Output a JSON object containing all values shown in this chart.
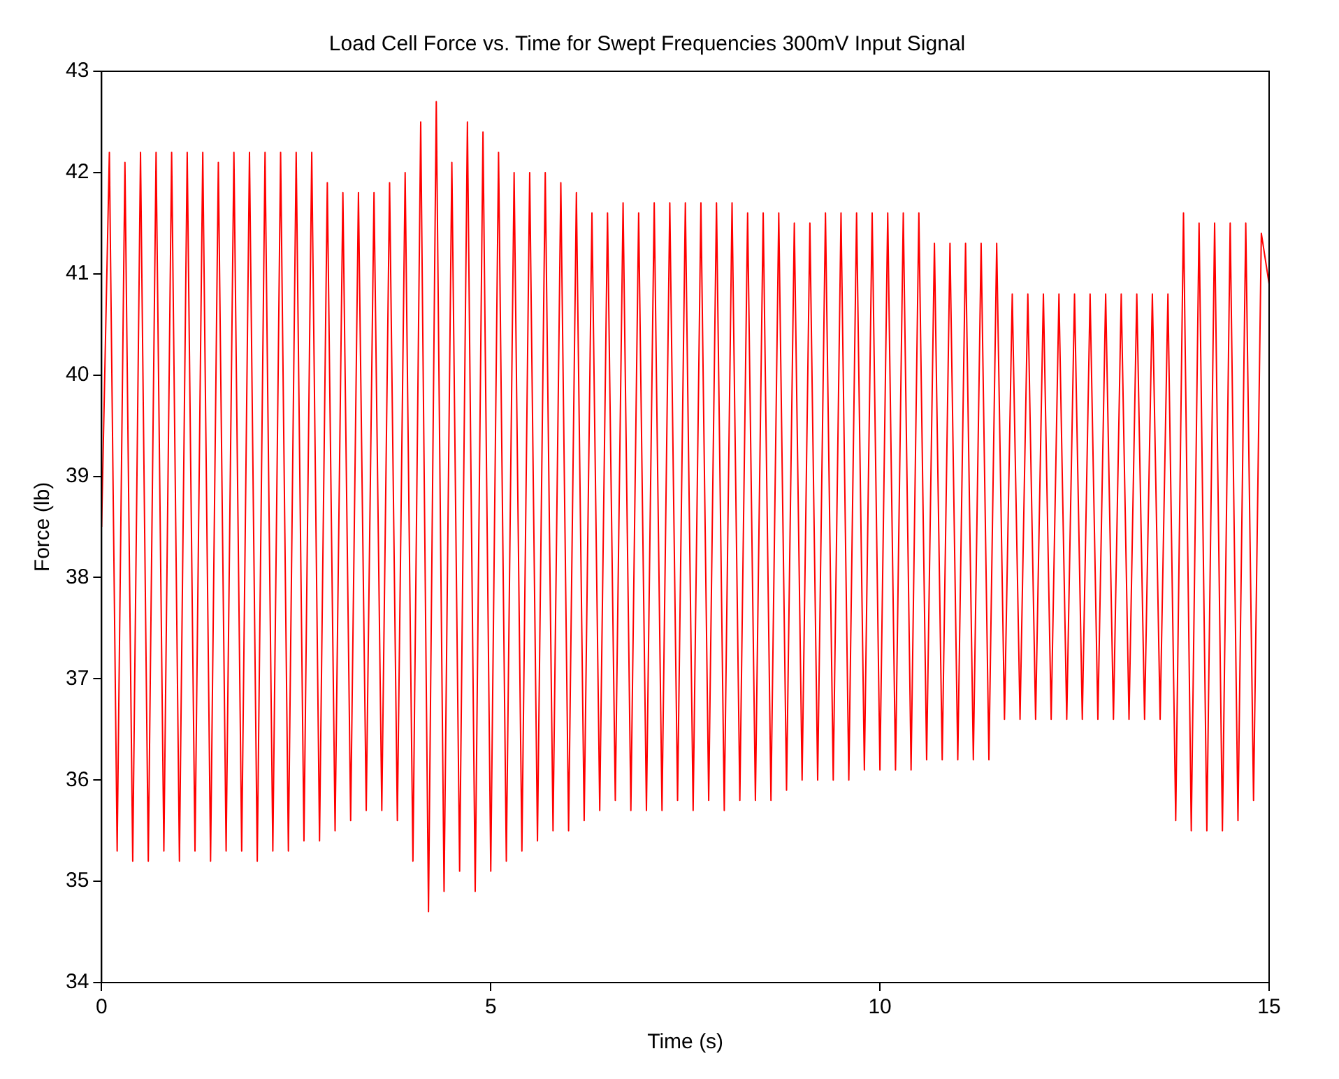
{
  "chart_data": {
    "type": "line",
    "title": "Load Cell Force vs. Time for Swept Frequencies 300mV Input Signal",
    "xlabel": "Time (s)",
    "ylabel": "Force (lb)",
    "xlim": [
      0,
      15
    ],
    "xticks": [
      0,
      5,
      10,
      15
    ],
    "ylim": [
      34,
      43
    ],
    "yticks": [
      34,
      35,
      36,
      37,
      38,
      39,
      40,
      41,
      42,
      43
    ],
    "grid": false,
    "legend": false,
    "marker": "none",
    "line_style": "solid",
    "series": [
      {
        "color": "#ff0000",
        "x": [
          0,
          0.1,
          0.2,
          0.3,
          0.4,
          0.5,
          0.6,
          0.7,
          0.8,
          0.9,
          1.0,
          1.1,
          1.2,
          1.3,
          1.4,
          1.5,
          1.6,
          1.7,
          1.8,
          1.9,
          2.0,
          2.1,
          2.2,
          2.3,
          2.4,
          2.5,
          2.6,
          2.7,
          2.8,
          2.9,
          3.0,
          3.1,
          3.2,
          3.3,
          3.4,
          3.5,
          3.6,
          3.7,
          3.8,
          3.9,
          4.0,
          4.1,
          4.2,
          4.3,
          4.4,
          4.5,
          4.6,
          4.7,
          4.8,
          4.9,
          5.0,
          5.1,
          5.2,
          5.3,
          5.4,
          5.5,
          5.6,
          5.7,
          5.8,
          5.9,
          6.0,
          6.1,
          6.2,
          6.3,
          6.4,
          6.5,
          6.6,
          6.7,
          6.8,
          6.9,
          7.0,
          7.1,
          7.2,
          7.3,
          7.4,
          7.5,
          7.6,
          7.7,
          7.8,
          7.9,
          8.0,
          8.1,
          8.2,
          8.3,
          8.4,
          8.5,
          8.6,
          8.7,
          8.8,
          8.9,
          9.0,
          9.1,
          9.2,
          9.3,
          9.4,
          9.5,
          9.6,
          9.7,
          9.8,
          9.9,
          10.0,
          10.1,
          10.2,
          10.3,
          10.4,
          10.5,
          10.6,
          10.7,
          10.8,
          10.9,
          11.0,
          11.1,
          11.2,
          11.3,
          11.4,
          11.5,
          11.6,
          11.7,
          11.8,
          11.9,
          12.0,
          12.1,
          12.2,
          12.3,
          12.4,
          12.5,
          12.6,
          12.7,
          12.8,
          12.9,
          13.0,
          13.1,
          13.2,
          13.3,
          13.4,
          13.5,
          13.6,
          13.7,
          13.8,
          13.9,
          14.0,
          14.1,
          14.2,
          14.3,
          14.4,
          14.5,
          14.6,
          14.7,
          14.8,
          14.9,
          15.0
        ],
        "values": [
          38.5,
          42.2,
          35.3,
          42.1,
          35.2,
          42.2,
          35.2,
          42.2,
          35.3,
          42.2,
          35.2,
          42.2,
          35.3,
          42.2,
          35.2,
          42.1,
          35.3,
          42.2,
          35.3,
          42.2,
          35.2,
          42.2,
          35.3,
          42.2,
          35.3,
          42.2,
          35.4,
          42.2,
          35.4,
          41.9,
          35.5,
          41.8,
          35.6,
          41.8,
          35.7,
          41.8,
          35.7,
          41.9,
          35.6,
          42.0,
          35.2,
          42.5,
          34.7,
          42.7,
          34.9,
          42.1,
          35.1,
          42.5,
          34.9,
          42.4,
          35.1,
          42.2,
          35.2,
          42.0,
          35.3,
          42.0,
          35.4,
          42.0,
          35.5,
          41.9,
          35.5,
          41.8,
          35.6,
          41.6,
          35.7,
          41.6,
          35.8,
          41.7,
          35.7,
          41.6,
          35.7,
          41.7,
          35.7,
          41.7,
          35.8,
          41.7,
          35.7,
          41.7,
          35.8,
          41.7,
          35.7,
          41.7,
          35.8,
          41.6,
          35.8,
          41.6,
          35.8,
          41.6,
          35.9,
          41.5,
          36.0,
          41.5,
          36.0,
          41.6,
          36.0,
          41.6,
          36.0,
          41.6,
          36.1,
          41.6,
          36.1,
          41.6,
          36.1,
          41.6,
          36.1,
          41.6,
          36.2,
          41.3,
          36.2,
          41.3,
          36.2,
          41.3,
          36.2,
          41.3,
          36.2,
          41.3,
          36.6,
          40.8,
          36.6,
          40.8,
          36.6,
          40.8,
          36.6,
          40.8,
          36.6,
          40.8,
          36.6,
          40.8,
          36.6,
          40.8,
          36.6,
          40.8,
          36.6,
          40.8,
          36.6,
          40.8,
          36.6,
          40.8,
          35.6,
          41.6,
          35.5,
          41.5,
          35.5,
          41.5,
          35.5,
          41.5,
          35.6,
          41.5,
          35.8,
          41.4,
          40.9
        ]
      }
    ]
  }
}
